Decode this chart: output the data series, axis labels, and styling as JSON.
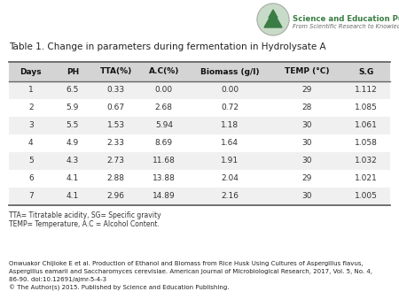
{
  "title": "Table 1. Change in parameters during fermentation in Hydrolysate A",
  "headers": [
    "Days",
    "PH",
    "TTA(%)",
    "A.C(%)",
    "Biomass (g/l)",
    "TEMP (°C)",
    "S.G"
  ],
  "rows": [
    [
      "1",
      "6.5",
      "0.33",
      "0.00",
      "0.00",
      "29",
      "1.112"
    ],
    [
      "2",
      "5.9",
      "0.67",
      "2.68",
      "0.72",
      "28",
      "1.085"
    ],
    [
      "3",
      "5.5",
      "1.53",
      "5.94",
      "1.18",
      "30",
      "1.061"
    ],
    [
      "4",
      "4.9",
      "2.33",
      "8.69",
      "1.64",
      "30",
      "1.058"
    ],
    [
      "5",
      "4.3",
      "2.73",
      "11.68",
      "1.91",
      "30",
      "1.032"
    ],
    [
      "6",
      "4.1",
      "2.88",
      "13.88",
      "2.04",
      "29",
      "1.021"
    ],
    [
      "7",
      "4.1",
      "2.96",
      "14.89",
      "2.16",
      "30",
      "1.005"
    ]
  ],
  "footnote1": "TTA= Titratable acidity, SG= Specific gravity",
  "footnote2": "TEMP= Temperature, A.C = Alcohol Content.",
  "citation_line1": "Onwuakor Chijioke E et al. Production of Ethanol and Biomass from Rice Husk Using Cultures of Aspergillus flavus,",
  "citation_line2": "Aspergillus eamarii and Saccharomyces cerevisiae. American Journal of Microbiological Research, 2017, Vol. 5, No. 4,",
  "citation_line3": "86-90. doi:10.12691/ajmr-5-4-3",
  "citation_line4": "© The Author(s) 2015. Published by Science and Education Publishing.",
  "header_bg": "#d4d4d4",
  "row_bg_odd": "#f0f0f0",
  "row_bg_even": "#ffffff",
  "header_text_color": "#111111",
  "row_text_color": "#333333",
  "table_edge_color": "#666666",
  "logo_text1": "Science and Education Publishing",
  "logo_text2": "From Scientific Research to Knowledge",
  "logo_green": "#3a7d44",
  "logo_circle_color": "#c8dbc8",
  "background_color": "#ffffff"
}
